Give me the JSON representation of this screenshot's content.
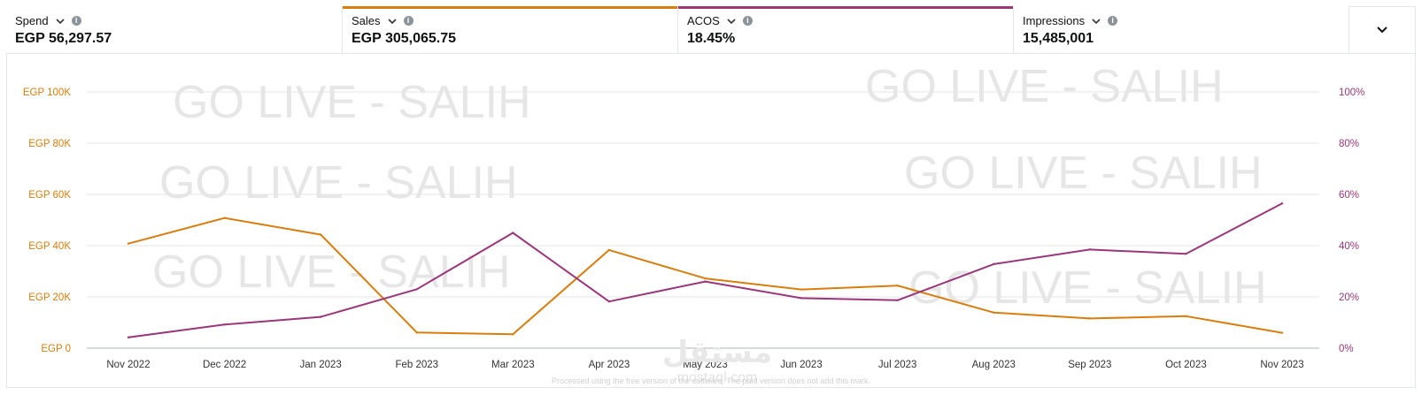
{
  "metrics": [
    {
      "label": "Spend",
      "value": "EGP 56,297.57",
      "accent": ""
    },
    {
      "label": "Sales",
      "value": "EGP 305,065.75",
      "accent": "#d97d0d"
    },
    {
      "label": "ACOS",
      "value": "18.45%",
      "accent": "#9b3679"
    },
    {
      "label": "Impressions",
      "value": "15,485,001",
      "accent": ""
    }
  ],
  "watermark_text": "GO LIVE - SALIH",
  "brand": {
    "arabic": "مستقل",
    "latin": "mostaql.com"
  },
  "footnote": "Processed using the free version of the software. The paid version does not add this mark.",
  "chart_data": {
    "type": "line",
    "categories": [
      "Nov 2022",
      "Dec 2022",
      "Jan 2023",
      "Feb 2023",
      "Mar 2023",
      "Apr 2023",
      "May 2023",
      "Jun 2023",
      "Jul 2023",
      "Aug 2023",
      "Sep 2023",
      "Oct 2023",
      "Nov 2023"
    ],
    "y_left": {
      "ticks": [
        "EGP 0",
        "EGP 20K",
        "EGP 40K",
        "EGP 60K",
        "EGP 80K",
        "EGP 100K"
      ],
      "range": [
        0,
        100000
      ]
    },
    "y_right": {
      "ticks": [
        "0%",
        "20%",
        "40%",
        "60%",
        "80%",
        "100%"
      ],
      "range": [
        0,
        100
      ]
    },
    "series": [
      {
        "axis": "left",
        "color": "#d97d0d",
        "values": [
          40800,
          50800,
          44300,
          6100,
          5400,
          38300,
          27200,
          22900,
          24400,
          13900,
          11600,
          12500,
          6000
        ]
      },
      {
        "axis": "right",
        "color": "#9b3679",
        "values": [
          4.2,
          9.2,
          12.2,
          23.0,
          45.0,
          18.2,
          26.0,
          19.5,
          18.7,
          32.8,
          38.5,
          36.8,
          56.5
        ]
      }
    ],
    "grid": true
  }
}
